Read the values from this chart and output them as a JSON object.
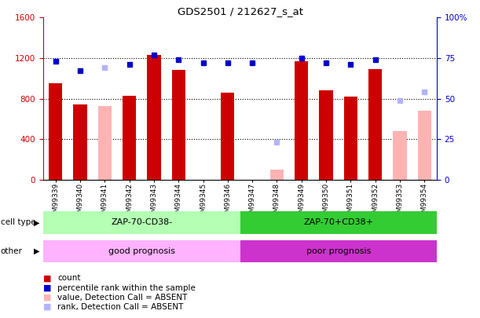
{
  "title": "GDS2501 / 212627_s_at",
  "samples": [
    "GSM99339",
    "GSM99340",
    "GSM99341",
    "GSM99342",
    "GSM99343",
    "GSM99344",
    "GSM99345",
    "GSM99346",
    "GSM99347",
    "GSM99348",
    "GSM99349",
    "GSM99350",
    "GSM99351",
    "GSM99352",
    "GSM99353",
    "GSM99354"
  ],
  "count_values": [
    950,
    740,
    null,
    830,
    1230,
    1080,
    null,
    860,
    null,
    null,
    1170,
    880,
    820,
    1090,
    null,
    null
  ],
  "count_absent": [
    null,
    null,
    730,
    null,
    null,
    null,
    null,
    null,
    null,
    100,
    null,
    null,
    null,
    null,
    480,
    680
  ],
  "rank_percent": [
    73,
    67,
    null,
    71,
    77,
    74,
    72,
    72,
    72,
    null,
    75,
    72,
    71,
    74,
    null,
    null
  ],
  "rank_absent_percent": [
    null,
    null,
    69,
    null,
    null,
    null,
    null,
    null,
    null,
    23,
    null,
    null,
    null,
    null,
    49,
    54
  ],
  "n_group1": 8,
  "n_group2": 8,
  "cell_type_label1": "ZAP-70-CD38-",
  "cell_type_label2": "ZAP-70+CD38+",
  "other_label1": "good prognosis",
  "other_label2": "poor prognosis",
  "cell_type_color1": "#b3ffb3",
  "cell_type_color2": "#33cc33",
  "other_color1": "#ffb3ff",
  "other_color2": "#cc33cc",
  "bar_color": "#cc0000",
  "bar_absent_color": "#ffb3b3",
  "rank_color": "#0000cc",
  "rank_absent_color": "#b3b3ff",
  "ylim_left": [
    0,
    1600
  ],
  "ylim_right": [
    0,
    100
  ],
  "yticks_left": [
    0,
    400,
    800,
    1200,
    1600
  ],
  "ytick_labels_left": [
    "0",
    "400",
    "800",
    "1200",
    "1600"
  ],
  "yticks_right": [
    0,
    25,
    50,
    75,
    100
  ],
  "ytick_labels_right": [
    "0",
    "25",
    "50",
    "75",
    "100%"
  ],
  "legend_items": [
    {
      "color": "#cc0000",
      "label": "count"
    },
    {
      "color": "#0000cc",
      "label": "percentile rank within the sample"
    },
    {
      "color": "#ffb3b3",
      "label": "value, Detection Call = ABSENT"
    },
    {
      "color": "#b3b3ff",
      "label": "rank, Detection Call = ABSENT"
    }
  ],
  "bg_color": "#ffffff",
  "left_axis_color": "#cc0000",
  "right_axis_color": "#0000cc"
}
